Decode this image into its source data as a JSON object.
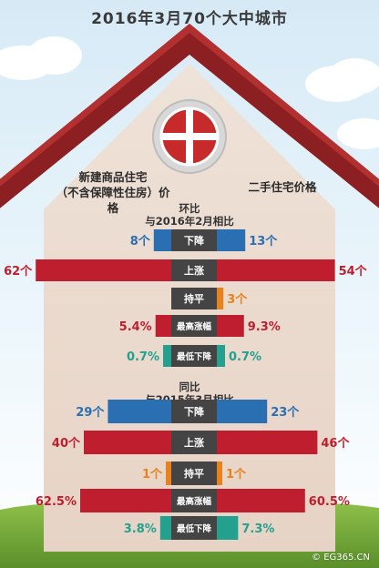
{
  "title": "2016年3月70个大中城市",
  "headers": {
    "new_line1": "新建商品住宅",
    "new_line2": "（不含保障性住房）价格",
    "second": "二手住宅价格"
  },
  "watermark": "© EG365.CN",
  "colors": {
    "down": "#2b6fb3",
    "up": "#be1e2d",
    "flat": "#e8821e",
    "min": "#23a08e",
    "label_bg": "#444444"
  },
  "chart_data": [
    {
      "type": "bar",
      "title_line1": "环比",
      "title_line2": "与2016年2月相比",
      "categories": [
        "下降",
        "上涨",
        "持平",
        "最高涨幅",
        "最低下降"
      ],
      "series": [
        {
          "name": "新建商品住宅（不含保障性住房）价格",
          "values": [
            8,
            62,
            0,
            5.4,
            0.7
          ],
          "labels": [
            "8个",
            "62个",
            "",
            "5.4%",
            "0.7%"
          ]
        },
        {
          "name": "二手住宅价格",
          "values": [
            13,
            54,
            3,
            9.3,
            0.7
          ],
          "labels": [
            "13个",
            "54个",
            "3个",
            "9.3%",
            "0.7%"
          ]
        }
      ]
    },
    {
      "type": "bar",
      "title_line1": "同比",
      "title_line2": "与2015年3月相比",
      "categories": [
        "下降",
        "上涨",
        "持平",
        "最高涨幅",
        "最低下降"
      ],
      "series": [
        {
          "name": "新建商品住宅（不含保障性住房）价格",
          "values": [
            29,
            40,
            1,
            62.5,
            3.8
          ],
          "labels": [
            "29个",
            "40个",
            "1个",
            "62.5%",
            "3.8%"
          ]
        },
        {
          "name": "二手住宅价格",
          "values": [
            23,
            46,
            1,
            60.5,
            7.3
          ],
          "labels": [
            "23个",
            "46个",
            "1个",
            "60.5%",
            "7.3%"
          ]
        }
      ]
    }
  ]
}
